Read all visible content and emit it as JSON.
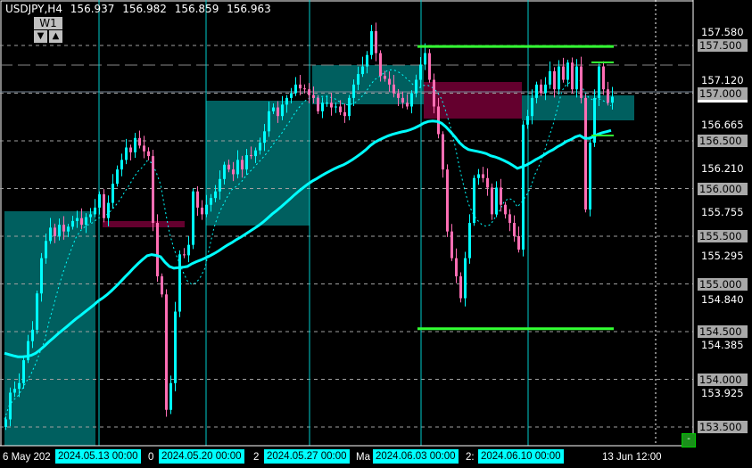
{
  "header": {
    "symbol": "USDJPY,H4",
    "open": "156.937",
    "high": "156.982",
    "low": "156.859",
    "close": "156.963"
  },
  "period_button": {
    "label": "W1",
    "down": "▼",
    "up": "▲"
  },
  "minimize_button": {
    "label": "-"
  },
  "colors": {
    "bull": "#00ffff",
    "bear": "#ff6eb4",
    "ma": "#00ffff",
    "box_teal": "#005f5f",
    "box_magenta": "#64002e",
    "level_line": "#33ff33",
    "grid": "#a0a0a0"
  },
  "chart_data": {
    "type": "candlestick",
    "title": "USDJPY,H4",
    "ylim": [
      153.32,
      157.98
    ],
    "price_levels": [
      "157.500",
      "157.000",
      "156.500",
      "156.000",
      "155.500",
      "155.000",
      "154.500",
      "154.000",
      "153.500"
    ],
    "price_ticks": [
      "157.580",
      "157.120",
      "156.665",
      "156.210",
      "155.755",
      "155.295",
      "154.840",
      "154.385",
      "153.925"
    ],
    "time_labels_plain": [
      "6 May 202",
      "0",
      "2",
      "Ma",
      "2:",
      "13 Jun 12:00"
    ],
    "time_labels_boxed": [
      "2024.05.13 00:00",
      "2024.05.20 00:00",
      "2024.05.27 00:00",
      "2024.06.03 00:00",
      "2024.06.10 00:00"
    ],
    "closes": [
      153.58,
      153.86,
      153.9,
      153.96,
      154.2,
      154.4,
      154.52,
      154.9,
      155.27,
      155.45,
      155.59,
      155.5,
      155.62,
      155.55,
      155.6,
      155.66,
      155.69,
      155.62,
      155.7,
      155.73,
      155.8,
      155.94,
      155.69,
      155.85,
      156.05,
      156.2,
      156.3,
      156.43,
      156.38,
      156.53,
      156.45,
      156.39,
      156.34,
      155.64,
      155.08,
      154.89,
      153.68,
      153.96,
      154.71,
      155.31,
      155.3,
      155.41,
      155.97,
      155.8,
      155.73,
      155.83,
      155.9,
      155.97,
      156.1,
      156.25,
      156.2,
      156.15,
      156.3,
      156.2,
      156.35,
      156.34,
      156.4,
      156.48,
      156.6,
      156.81,
      156.85,
      156.76,
      156.88,
      156.95,
      157.0,
      157.09,
      157.05,
      157.04,
      156.98,
      156.95,
      156.81,
      156.9,
      156.9,
      156.85,
      156.86,
      156.8,
      156.76,
      156.95,
      157.09,
      157.2,
      157.28,
      157.4,
      157.65,
      157.42,
      157.18,
      157.15,
      157.09,
      157.0,
      156.95,
      156.9,
      156.86,
      157.0,
      157.14,
      157.3,
      157.42,
      157.14,
      156.86,
      156.57,
      156.2,
      155.55,
      155.27,
      155.08,
      154.85,
      155.27,
      155.64,
      156.11,
      156.15,
      156.11,
      156.01,
      155.73,
      156.01,
      155.83,
      155.73,
      155.64,
      155.5,
      155.36,
      156.67,
      156.76,
      156.95,
      157.09,
      157.0,
      157.09,
      157.23,
      157.04,
      157.28,
      157.14,
      157.32,
      157.04,
      157.28,
      156.95,
      155.78,
      156.48,
      156.95,
      157.28,
      157.04,
      156.9,
      156.963
    ],
    "first_open": 153.5,
    "support_resistance": [
      157.49,
      154.53
    ],
    "current_price": 156.963
  }
}
